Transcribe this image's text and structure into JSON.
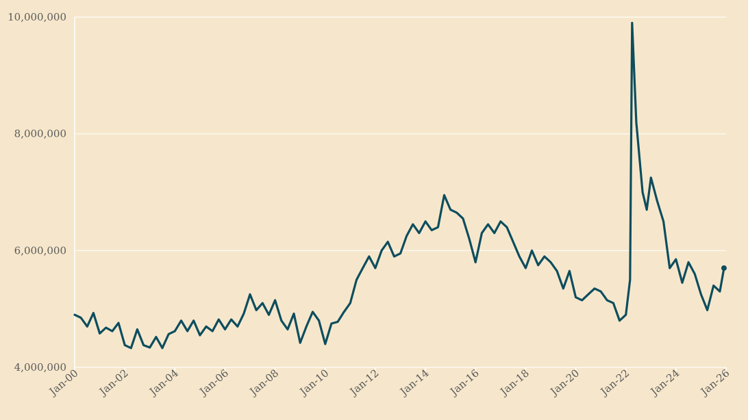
{
  "chart_data": {
    "type": "line",
    "title": "",
    "xlabel": "",
    "ylabel": "",
    "x_range": [
      "2000-01",
      "2026-01"
    ],
    "ylim": [
      4000000,
      10000000
    ],
    "grid": "horizontal",
    "y_ticks": [
      {
        "value": 4000000,
        "label": "4,000,000"
      },
      {
        "value": 6000000,
        "label": "6,000,000"
      },
      {
        "value": 8000000,
        "label": "8,000,000"
      },
      {
        "value": 10000000,
        "label": "10,000,000"
      }
    ],
    "x_ticks": [
      {
        "value": "2000-01",
        "label": "Jan-00"
      },
      {
        "value": "2002-01",
        "label": "Jan-02"
      },
      {
        "value": "2004-01",
        "label": "Jan-04"
      },
      {
        "value": "2006-01",
        "label": "Jan-06"
      },
      {
        "value": "2008-01",
        "label": "Jan-08"
      },
      {
        "value": "2010-01",
        "label": "Jan-10"
      },
      {
        "value": "2012-01",
        "label": "Jan-12"
      },
      {
        "value": "2014-01",
        "label": "Jan-14"
      },
      {
        "value": "2016-01",
        "label": "Jan-16"
      },
      {
        "value": "2018-01",
        "label": "Jan-18"
      },
      {
        "value": "2020-01",
        "label": "Jan-20"
      },
      {
        "value": "2022-01",
        "label": "Jan-22"
      },
      {
        "value": "2024-01",
        "label": "Jan-24"
      },
      {
        "value": "2026-01",
        "label": "Jan-26"
      }
    ],
    "series": [
      {
        "color": "#0d4d5e",
        "end_marker": true,
        "points": [
          [
            "2000-01",
            4900000
          ],
          [
            "2000-04",
            4850000
          ],
          [
            "2000-07",
            4700000
          ],
          [
            "2000-10",
            4930000
          ],
          [
            "2001-01",
            4580000
          ],
          [
            "2001-04",
            4680000
          ],
          [
            "2001-07",
            4620000
          ],
          [
            "2001-10",
            4760000
          ],
          [
            "2002-01",
            4380000
          ],
          [
            "2002-04",
            4330000
          ],
          [
            "2002-07",
            4650000
          ],
          [
            "2002-10",
            4380000
          ],
          [
            "2003-01",
            4340000
          ],
          [
            "2003-04",
            4520000
          ],
          [
            "2003-07",
            4330000
          ],
          [
            "2003-10",
            4570000
          ],
          [
            "2004-01",
            4620000
          ],
          [
            "2004-04",
            4800000
          ],
          [
            "2004-07",
            4620000
          ],
          [
            "2004-10",
            4800000
          ],
          [
            "2005-01",
            4550000
          ],
          [
            "2005-04",
            4700000
          ],
          [
            "2005-07",
            4620000
          ],
          [
            "2005-10",
            4820000
          ],
          [
            "2006-01",
            4650000
          ],
          [
            "2006-04",
            4820000
          ],
          [
            "2006-07",
            4700000
          ],
          [
            "2006-10",
            4920000
          ],
          [
            "2007-01",
            5250000
          ],
          [
            "2007-04",
            4980000
          ],
          [
            "2007-07",
            5100000
          ],
          [
            "2007-10",
            4900000
          ],
          [
            "2008-01",
            5150000
          ],
          [
            "2008-04",
            4800000
          ],
          [
            "2008-07",
            4650000
          ],
          [
            "2008-10",
            4920000
          ],
          [
            "2009-01",
            4420000
          ],
          [
            "2009-04",
            4700000
          ],
          [
            "2009-07",
            4950000
          ],
          [
            "2009-10",
            4800000
          ],
          [
            "2010-01",
            4400000
          ],
          [
            "2010-04",
            4750000
          ],
          [
            "2010-07",
            4780000
          ],
          [
            "2010-10",
            4950000
          ],
          [
            "2011-01",
            5100000
          ],
          [
            "2011-04",
            5500000
          ],
          [
            "2011-07",
            5700000
          ],
          [
            "2011-10",
            5900000
          ],
          [
            "2012-01",
            5700000
          ],
          [
            "2012-04",
            6000000
          ],
          [
            "2012-07",
            6150000
          ],
          [
            "2012-10",
            5900000
          ],
          [
            "2013-01",
            5950000
          ],
          [
            "2013-04",
            6250000
          ],
          [
            "2013-07",
            6450000
          ],
          [
            "2013-10",
            6300000
          ],
          [
            "2014-01",
            6500000
          ],
          [
            "2014-04",
            6350000
          ],
          [
            "2014-07",
            6400000
          ],
          [
            "2014-10",
            6950000
          ],
          [
            "2015-01",
            6700000
          ],
          [
            "2015-04",
            6650000
          ],
          [
            "2015-07",
            6550000
          ],
          [
            "2015-10",
            6200000
          ],
          [
            "2016-01",
            5800000
          ],
          [
            "2016-04",
            6300000
          ],
          [
            "2016-07",
            6450000
          ],
          [
            "2016-10",
            6300000
          ],
          [
            "2017-01",
            6500000
          ],
          [
            "2017-04",
            6400000
          ],
          [
            "2017-07",
            6150000
          ],
          [
            "2017-10",
            5900000
          ],
          [
            "2018-01",
            5700000
          ],
          [
            "2018-04",
            6000000
          ],
          [
            "2018-07",
            5750000
          ],
          [
            "2018-10",
            5900000
          ],
          [
            "2019-01",
            5800000
          ],
          [
            "2019-04",
            5650000
          ],
          [
            "2019-07",
            5350000
          ],
          [
            "2019-10",
            5650000
          ],
          [
            "2020-01",
            5200000
          ],
          [
            "2020-04",
            5150000
          ],
          [
            "2020-07",
            5250000
          ],
          [
            "2020-10",
            5350000
          ],
          [
            "2021-01",
            5300000
          ],
          [
            "2021-04",
            5150000
          ],
          [
            "2021-07",
            5100000
          ],
          [
            "2021-10",
            4800000
          ],
          [
            "2022-01",
            4900000
          ],
          [
            "2022-03",
            5500000
          ],
          [
            "2022-04",
            9900000
          ],
          [
            "2022-06",
            8200000
          ],
          [
            "2022-09",
            7000000
          ],
          [
            "2022-11",
            6700000
          ],
          [
            "2023-01",
            7250000
          ],
          [
            "2023-04",
            6850000
          ],
          [
            "2023-07",
            6500000
          ],
          [
            "2023-10",
            5700000
          ],
          [
            "2024-01",
            5850000
          ],
          [
            "2024-04",
            5450000
          ],
          [
            "2024-07",
            5800000
          ],
          [
            "2024-10",
            5600000
          ],
          [
            "2025-01",
            5250000
          ],
          [
            "2025-04",
            4980000
          ],
          [
            "2025-07",
            5400000
          ],
          [
            "2025-10",
            5300000
          ],
          [
            "2025-12",
            5700000
          ]
        ]
      }
    ]
  }
}
